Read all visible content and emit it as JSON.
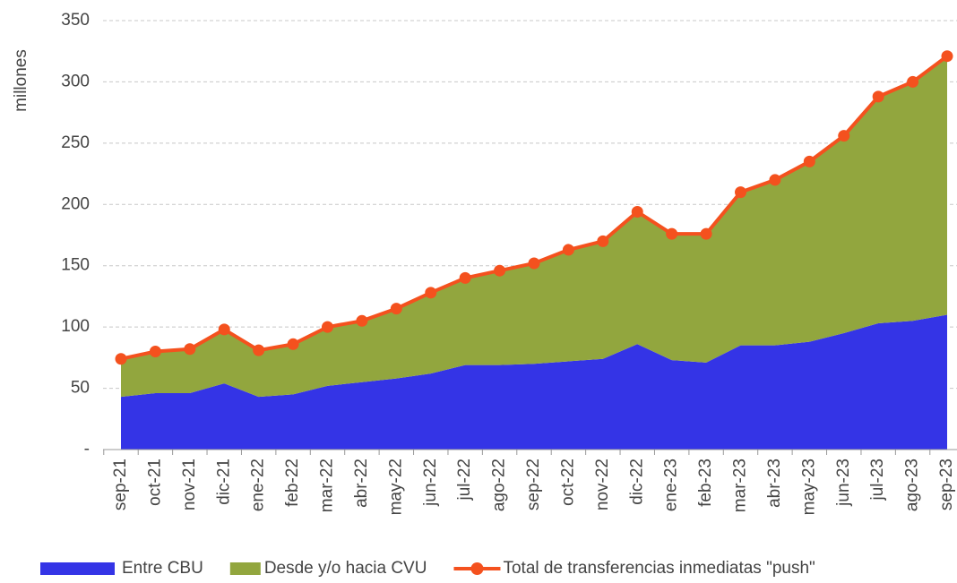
{
  "chart_data": {
    "type": "area",
    "stacked": true,
    "y_label": "millones",
    "categories": [
      "sep-21",
      "oct-21",
      "nov-21",
      "dic-21",
      "ene-22",
      "feb-22",
      "mar-22",
      "abr-22",
      "may-22",
      "jun-22",
      "jul-22",
      "ago-22",
      "sep-22",
      "oct-22",
      "nov-22",
      "dic-22",
      "ene-23",
      "feb-23",
      "mar-23",
      "abr-23",
      "may-23",
      "jun-23",
      "jul-23",
      "ago-23",
      "sep-23"
    ],
    "series": [
      {
        "name": "Entre CBU",
        "type": "area",
        "color": "#3434e6",
        "values": [
          43,
          46,
          46,
          54,
          43,
          45,
          52,
          55,
          58,
          62,
          69,
          69,
          70,
          72,
          74,
          86,
          73,
          71,
          85,
          85,
          88,
          95,
          103,
          105,
          110
        ]
      },
      {
        "name": "Desde y/o hacia CVU",
        "type": "area",
        "color": "#92a63e",
        "values": [
          31,
          34,
          36,
          44,
          38,
          41,
          48,
          50,
          57,
          66,
          71,
          77,
          82,
          91,
          96,
          108,
          103,
          105,
          125,
          135,
          147,
          161,
          185,
          195,
          211
        ]
      },
      {
        "name": "Total de transferencias inmediatas \"push\"",
        "type": "line",
        "color": "#f4511e",
        "values": [
          74,
          80,
          82,
          98,
          81,
          86,
          100,
          105,
          115,
          128,
          140,
          146,
          152,
          163,
          170,
          194,
          176,
          176,
          210,
          220,
          235,
          256,
          288,
          300,
          321
        ]
      }
    ],
    "ylim": [
      0,
      350
    ],
    "yticks": [
      {
        "value": 0,
        "label": "-"
      },
      50,
      100,
      150,
      200,
      250,
      300,
      350
    ],
    "grid": true,
    "legend": "bottom"
  }
}
